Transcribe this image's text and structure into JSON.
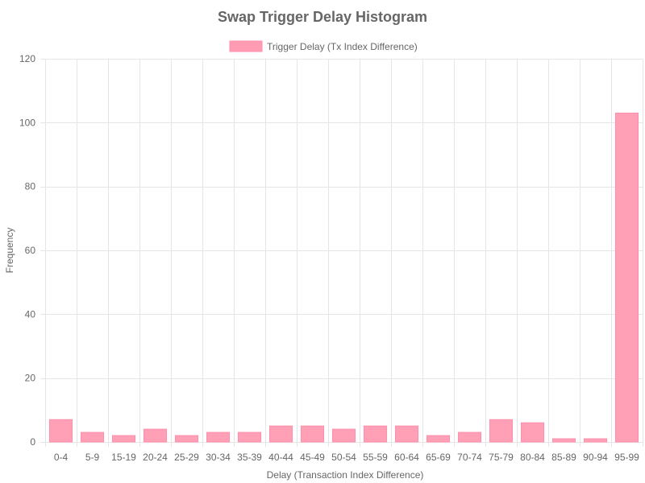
{
  "chart_data": {
    "type": "bar",
    "title": "Swap Trigger Delay Histogram",
    "xlabel": "Delay (Transaction Index Difference)",
    "ylabel": "Frequency",
    "legend": {
      "position": "top",
      "entries": [
        "Trigger Delay (Tx Index Difference)"
      ]
    },
    "ylim": [
      0,
      120
    ],
    "yticks": [
      0,
      20,
      40,
      60,
      80,
      100,
      120
    ],
    "grid": true,
    "categories": [
      "0-4",
      "5-9",
      "15-19",
      "20-24",
      "25-29",
      "30-34",
      "35-39",
      "40-44",
      "45-49",
      "50-54",
      "55-59",
      "60-64",
      "65-69",
      "70-74",
      "75-79",
      "80-84",
      "85-89",
      "90-94",
      "95-99"
    ],
    "series": [
      {
        "name": "Trigger Delay (Tx Index Difference)",
        "color": "#ff9bb2",
        "values": [
          7,
          3,
          2,
          4,
          2,
          3,
          3,
          5,
          5,
          4,
          5,
          5,
          2,
          3,
          7,
          6,
          1,
          1,
          103
        ]
      }
    ]
  }
}
